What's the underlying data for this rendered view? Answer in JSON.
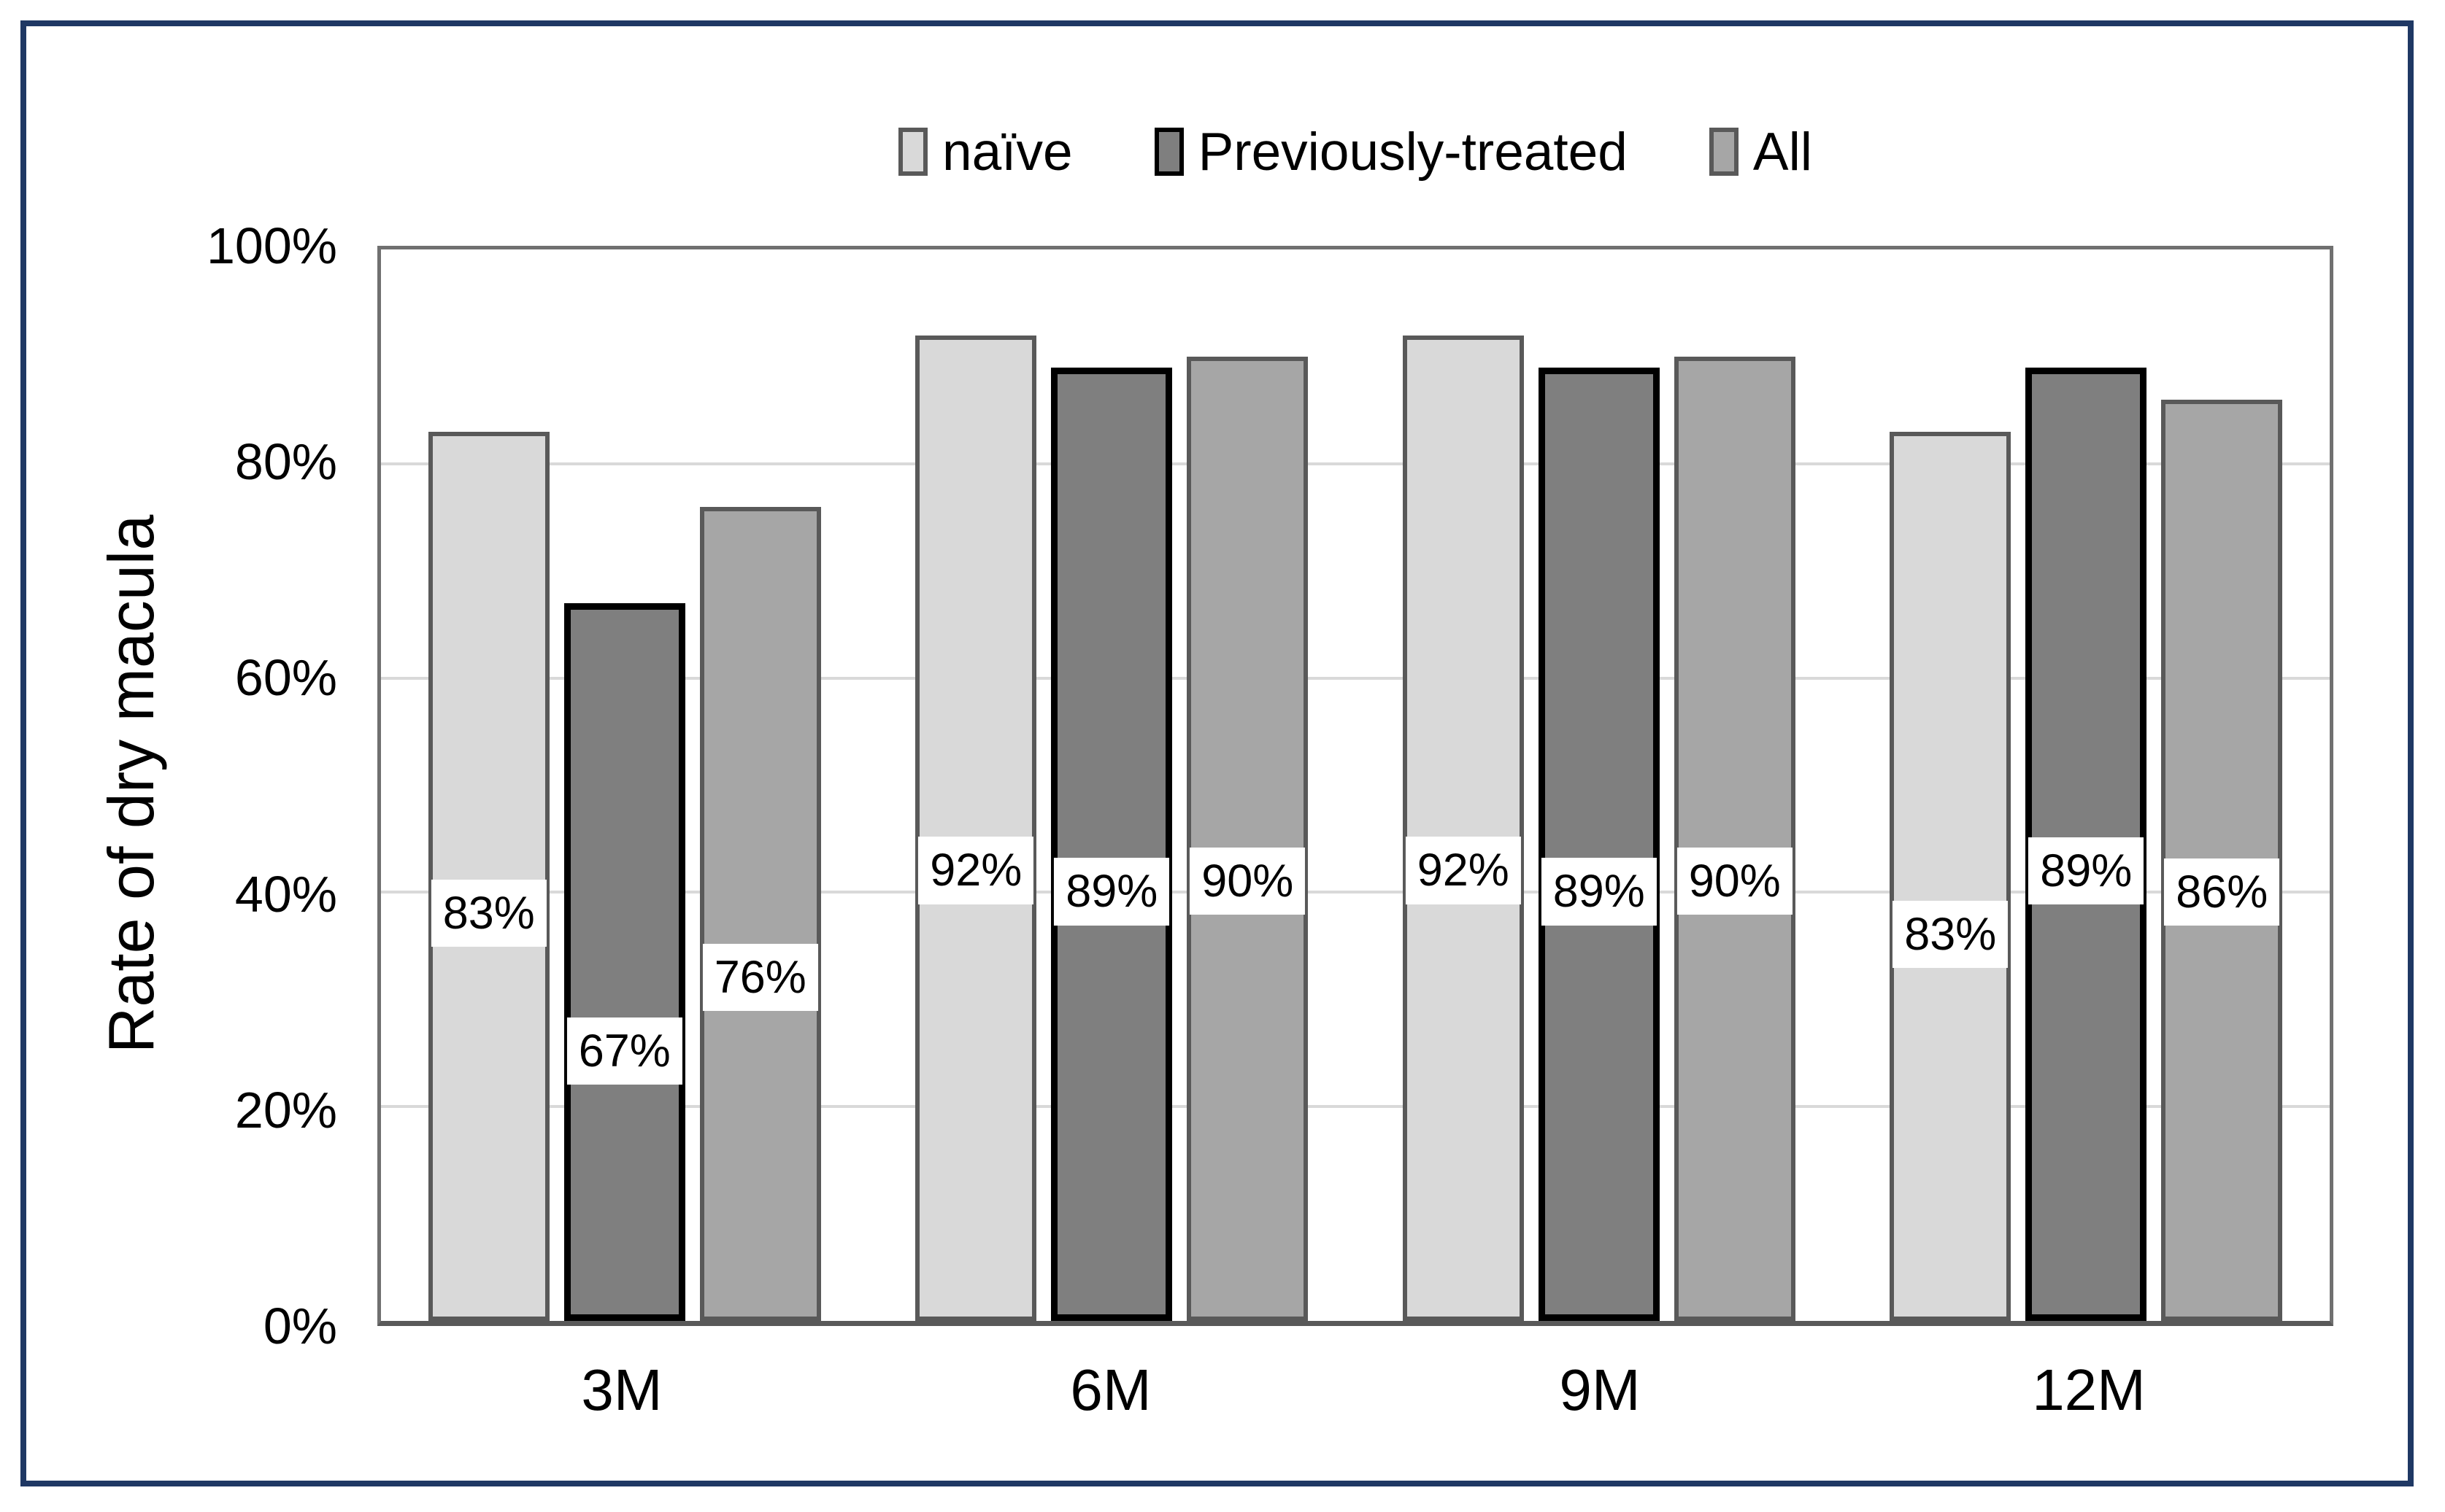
{
  "figure": {
    "border_color": "#1f3864",
    "background": "#ffffff"
  },
  "chart_data": {
    "type": "bar",
    "title": "",
    "xlabel": "",
    "ylabel": "Rate of dry macula",
    "categories": [
      "3M",
      "6M",
      "9M",
      "12M"
    ],
    "series": [
      {
        "name": "naïve",
        "values": [
          83,
          92,
          92,
          83
        ],
        "fill": "#d9d9d9",
        "border": "#595959",
        "border_px": 6
      },
      {
        "name": "Previously-treated",
        "values": [
          67,
          89,
          89,
          89
        ],
        "fill": "#7f7f7f",
        "border": "#000000",
        "border_px": 9
      },
      {
        "name": "All",
        "values": [
          76,
          90,
          90,
          86
        ],
        "fill": "#a6a6a6",
        "border": "#595959",
        "border_px": 6
      }
    ],
    "data_labels": [
      [
        "83%",
        "67%",
        "76%"
      ],
      [
        "92%",
        "89%",
        "90%"
      ],
      [
        "92%",
        "89%",
        "90%"
      ],
      [
        "83%",
        "89%",
        "86%"
      ]
    ],
    "label_center_pct": [
      [
        38,
        25,
        32
      ],
      [
        42,
        40,
        41
      ],
      [
        42,
        40,
        41
      ],
      [
        36,
        42,
        40
      ]
    ],
    "y_ticks": [
      {
        "label": "100%",
        "value": 100
      },
      {
        "label": "80%",
        "value": 80
      },
      {
        "label": "60%",
        "value": 60
      },
      {
        "label": "40%",
        "value": 40
      },
      {
        "label": "20%",
        "value": 20
      },
      {
        "label": "0%",
        "value": 0
      }
    ],
    "ylim": [
      0,
      100
    ],
    "gridlines": [
      20,
      40,
      60,
      80
    ],
    "grid": true,
    "legend_position": "top",
    "colors": {
      "gridline": "#d9d9d9",
      "plot_frame": "#707070",
      "axis_line": "#595959"
    }
  }
}
